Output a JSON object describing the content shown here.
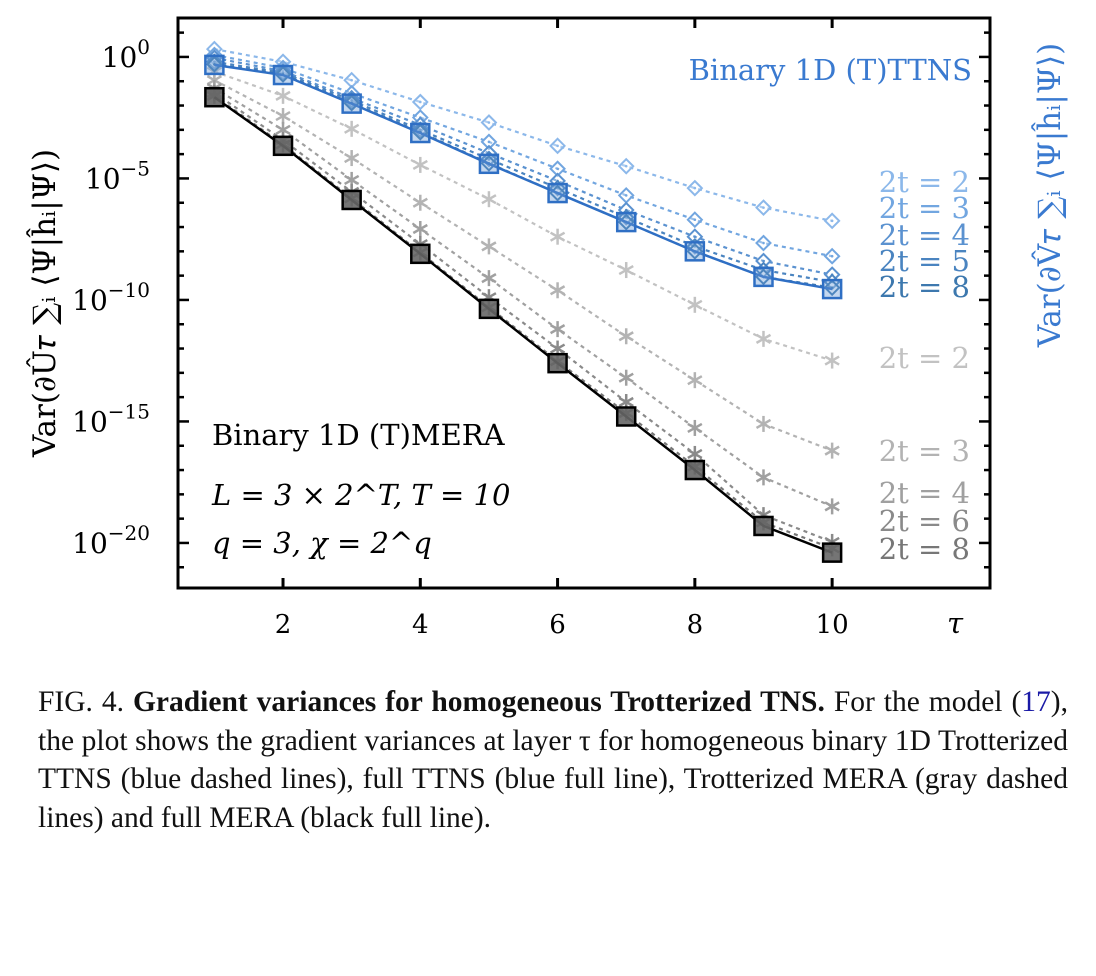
{
  "chart_data": {
    "type": "line",
    "yscale": "log",
    "xlabel": "τ",
    "ylabel_left": "Var(∂Û𝜏 ∑ᵢ ⟨Ψ|ĥᵢ|Ψ⟩)",
    "ylabel_right": "Var(∂V̂𝜏 ∑ᵢ ⟨Ψ|ĥᵢ|Ψ⟩)",
    "xlim": [
      0.47,
      12.3
    ],
    "ylim": [
      1.4e-22,
      40
    ],
    "xticks": [
      2,
      4,
      6,
      8,
      10
    ],
    "xtick_labels": [
      "2",
      "4",
      "6",
      "8",
      "10"
    ],
    "yticks": [
      1,
      1e-05,
      1e-10,
      1e-15,
      1e-20
    ],
    "ytick_labels": [
      "10^0",
      "10^-5",
      "10^-10",
      "10^-15",
      "10^-20"
    ],
    "grid": false,
    "annotations": {
      "ttns_title": "Binary 1D (T)TTNS",
      "mera_title": "Binary 1D (T)MERA",
      "params_line1": "L = 3 × 2^T, T = 10",
      "params_line2": "q = 3, χ = 2^q"
    },
    "x": [
      1,
      2,
      3,
      4,
      5,
      6,
      7,
      8,
      9,
      10
    ],
    "series": [
      {
        "name": "2t = 2",
        "group": "TTNS Trotterized",
        "style": "dashed",
        "marker": "diamond",
        "color": "#8cb8ea",
        "values": [
          2.1,
          0.63,
          0.11,
          0.014,
          0.002,
          0.00022,
          3.2e-05,
          4e-06,
          6.3e-07,
          1.8e-07
        ]
      },
      {
        "name": "2t = 3",
        "group": "TTNS Trotterized",
        "style": "dashed",
        "marker": "diamond",
        "color": "#72a6e0",
        "values": [
          1.2,
          0.35,
          0.032,
          0.0032,
          0.00032,
          2.5e-05,
          2e-06,
          2e-07,
          2.2e-08,
          6.3e-09
        ]
      },
      {
        "name": "2t = 4",
        "group": "TTNS Trotterized",
        "style": "dashed",
        "marker": "diamond",
        "color": "#5b92d0",
        "values": [
          0.91,
          0.26,
          0.02,
          0.0016,
          0.00011,
          7.9e-06,
          5e-07,
          4e-08,
          4e-09,
          1.1e-09
        ]
      },
      {
        "name": "2t = 5",
        "group": "TTNS Trotterized",
        "style": "dashed",
        "marker": "diamond",
        "color": "#4a84c0",
        "values": [
          0.63,
          0.22,
          0.016,
          0.001,
          6.3e-05,
          4e-06,
          2.5e-07,
          1.6e-08,
          1.7e-09,
          5.5e-10
        ]
      },
      {
        "name": "2t = 8",
        "group": "TTNS Trotterized",
        "style": "dashed",
        "marker": "diamond",
        "color": "#3d78ae",
        "values": [
          0.5,
          0.19,
          0.0126,
          0.0008,
          4.2e-05,
          2.5e-06,
          1.6e-07,
          1e-08,
          8.9e-10,
          3.2e-10
        ]
      },
      {
        "name": "",
        "group": "TTNS full",
        "style": "solid",
        "marker": "square",
        "color": "#2f6fc4",
        "values": [
          0.47,
          0.18,
          0.012,
          0.00074,
          4e-05,
          2.5e-06,
          1.6e-07,
          1e-08,
          8.9e-10,
          2.8e-10
        ]
      },
      {
        "name": "2t = 2",
        "group": "MERA Trotterized",
        "style": "dashed",
        "marker": "asterisk",
        "color": "#c2c2c2",
        "values": [
          0.25,
          0.025,
          0.0011,
          3.6e-05,
          1.4e-06,
          4e-08,
          1.7e-09,
          6.3e-11,
          2.5e-12,
          3.2e-13
        ]
      },
      {
        "name": "2t = 3",
        "group": "MERA Trotterized",
        "style": "dashed",
        "marker": "asterisk",
        "color": "#b3b3b3",
        "values": [
          0.11,
          0.0037,
          6.9e-05,
          1e-06,
          1.6e-08,
          2.5e-10,
          3.2e-12,
          5e-14,
          7.9e-16,
          6.3e-17
        ]
      },
      {
        "name": "2t = 4",
        "group": "MERA Trotterized",
        "style": "dashed",
        "marker": "asterisk",
        "color": "#a0a0a0",
        "values": [
          0.052,
          0.001,
          8.7e-06,
          8.3e-08,
          7.9e-10,
          6.3e-12,
          6.3e-14,
          5.4e-16,
          5e-18,
          3.2e-19
        ]
      },
      {
        "name": "2t = 6",
        "group": "MERA Trotterized",
        "style": "dashed",
        "marker": "asterisk",
        "color": "#8a8a8a",
        "values": [
          0.033,
          0.00038,
          2.8e-06,
          2e-08,
          1.3e-10,
          1e-12,
          6.3e-15,
          4.6e-17,
          1.4e-19,
          1.1e-20
        ]
      },
      {
        "name": "2t = 8",
        "group": "MERA Trotterized",
        "style": "dashed",
        "marker": "asterisk",
        "color": "#777777",
        "values": [
          0.025,
          0.00025,
          1.5e-06,
          9e-09,
          5e-11,
          3e-13,
          2.2e-15,
          1.4e-17,
          7e-20,
          6e-21
        ]
      },
      {
        "name": "",
        "group": "MERA full",
        "style": "solid",
        "marker": "square",
        "color": "#000000",
        "values": [
          0.022,
          0.00022,
          1.3e-06,
          7.9e-09,
          4.3e-11,
          2.5e-13,
          1.6e-15,
          1e-17,
          5e-20,
          4e-21
        ]
      }
    ]
  },
  "caption": {
    "label": "FIG. 4.",
    "title": "Gradient variances for homogeneous Trotterized TNS.",
    "text_before_ref": "For the model (",
    "ref": "17",
    "text_after_ref": "), the plot shows the gradient variances at layer τ for homogeneous binary 1D Trotterized TTNS (blue dashed lines), full TTNS (blue full line), Trotterized MERA (gray dashed lines) and full MERA (black full line)."
  }
}
